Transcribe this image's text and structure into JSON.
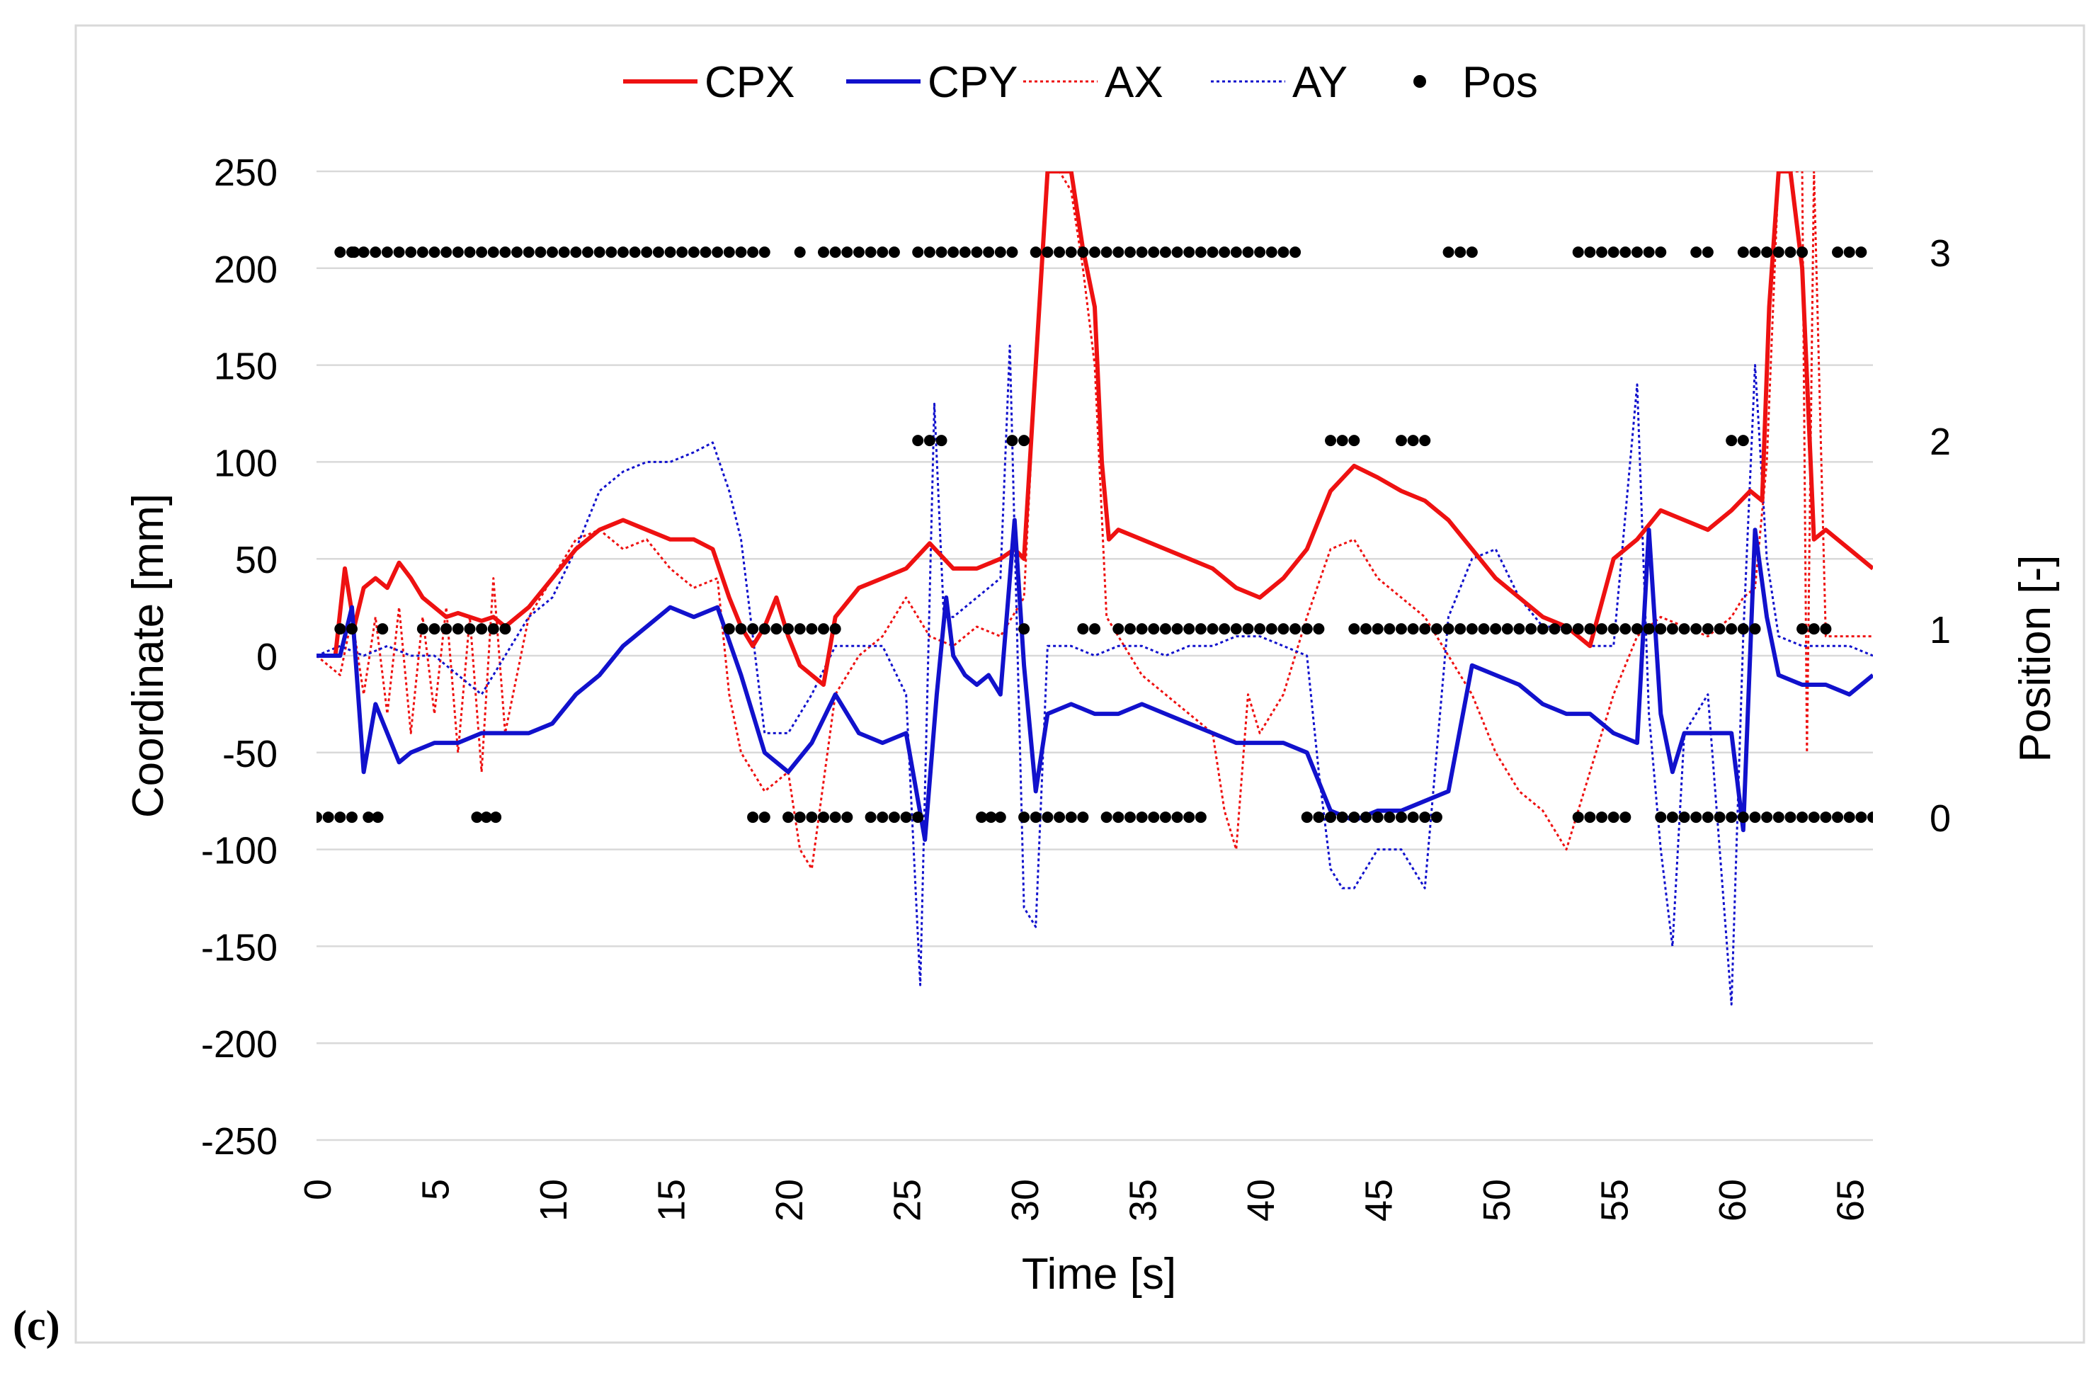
{
  "panel_label": "(c)",
  "chart_data": {
    "type": "line",
    "xlabel": "Time [s]",
    "ylabel": "Coordinate [mm]",
    "y2label": "Position [-]",
    "xlim": [
      0,
      66
    ],
    "ylim": [
      -250,
      250
    ],
    "y2lim": [
      -1.714,
      3.429
    ],
    "x_ticks": [
      "0",
      "5",
      "10",
      "15",
      "20",
      "25",
      "30",
      "35",
      "40",
      "45",
      "50",
      "55",
      "60",
      "65"
    ],
    "y_ticks": [
      "250",
      "200",
      "150",
      "100",
      "50",
      "0",
      "-50",
      "-100",
      "-150",
      "-200",
      "-250"
    ],
    "y2_ticks": [
      "3",
      "2",
      "1",
      "0"
    ],
    "legend": [
      {
        "name": "CPX",
        "color": "#ee1111",
        "style": "solid"
      },
      {
        "name": "CPY",
        "color": "#1111cc",
        "style": "solid"
      },
      {
        "name": "AX",
        "color": "#ee1111",
        "style": "dotted"
      },
      {
        "name": "AY",
        "color": "#1111cc",
        "style": "dotted"
      },
      {
        "name": "Pos",
        "color": "#000000",
        "style": "marker"
      }
    ],
    "series": [
      {
        "name": "CPX",
        "axis": "left",
        "x": [
          0,
          0.8,
          1.2,
          1.6,
          2.0,
          2.5,
          3.0,
          3.5,
          4.0,
          4.5,
          5.0,
          5.5,
          6.0,
          6.5,
          7.0,
          7.5,
          8.0,
          9.0,
          10.0,
          11.0,
          12.0,
          13.0,
          14.0,
          15.0,
          16.0,
          16.8,
          17.5,
          18.0,
          18.5,
          19.0,
          19.5,
          20.0,
          20.5,
          21.0,
          21.5,
          22.0,
          23.0,
          24.0,
          25.0,
          26.0,
          27.0,
          28.0,
          29.0,
          29.6,
          30.0,
          30.5,
          31.0,
          31.5,
          32.0,
          32.5,
          33.0,
          33.3,
          33.6,
          34.0,
          35.0,
          36.0,
          37.0,
          38.0,
          39.0,
          40.0,
          41.0,
          42.0,
          43.0,
          44.0,
          45.0,
          46.0,
          47.0,
          48.0,
          49.0,
          50.0,
          51.0,
          52.0,
          53.0,
          54.0,
          55.0,
          56.0,
          57.0,
          58.0,
          59.0,
          60.0,
          60.8,
          61.3,
          61.6,
          62.0,
          62.5,
          63.0,
          63.5,
          64.0,
          65.0,
          66.0
        ],
        "values": [
          0,
          0,
          45,
          15,
          35,
          40,
          35,
          48,
          40,
          30,
          25,
          20,
          22,
          20,
          18,
          20,
          15,
          25,
          40,
          55,
          65,
          70,
          65,
          60,
          60,
          55,
          30,
          15,
          5,
          15,
          30,
          10,
          -5,
          -10,
          -15,
          20,
          35,
          40,
          45,
          58,
          45,
          45,
          50,
          55,
          50,
          150,
          250,
          250,
          250,
          210,
          180,
          100,
          60,
          65,
          60,
          55,
          50,
          45,
          35,
          30,
          40,
          55,
          85,
          98,
          92,
          85,
          80,
          70,
          55,
          40,
          30,
          20,
          15,
          5,
          50,
          60,
          75,
          70,
          65,
          75,
          85,
          80,
          180,
          250,
          250,
          200,
          60,
          65,
          55,
          45
        ]
      },
      {
        "name": "CPY",
        "axis": "left",
        "x": [
          0,
          1.0,
          1.5,
          2.0,
          2.5,
          3.0,
          3.5,
          4.0,
          5.0,
          6.0,
          7.0,
          8.0,
          9.0,
          10.0,
          11.0,
          12.0,
          13.0,
          14.0,
          15.0,
          16.0,
          17.0,
          18.0,
          19.0,
          20.0,
          21.0,
          22.0,
          23.0,
          24.0,
          25.0,
          25.8,
          26.3,
          26.7,
          27.0,
          27.5,
          28.0,
          28.5,
          29.0,
          29.6,
          30.0,
          30.5,
          31.0,
          32.0,
          33.0,
          34.0,
          35.0,
          36.0,
          37.0,
          38.0,
          39.0,
          40.0,
          41.0,
          42.0,
          43.0,
          44.0,
          45.0,
          46.0,
          47.0,
          48.0,
          49.0,
          50.0,
          51.0,
          52.0,
          53.0,
          54.0,
          55.0,
          56.0,
          56.5,
          57.0,
          57.5,
          58.0,
          59.0,
          60.0,
          60.5,
          61.0,
          61.5,
          62.0,
          63.0,
          64.0,
          65.0,
          66.0
        ],
        "values": [
          0,
          0,
          25,
          -60,
          -25,
          -40,
          -55,
          -50,
          -45,
          -45,
          -40,
          -40,
          -40,
          -35,
          -20,
          -10,
          5,
          15,
          25,
          20,
          25,
          -10,
          -50,
          -60,
          -45,
          -20,
          -40,
          -45,
          -40,
          -95,
          -20,
          30,
          0,
          -10,
          -15,
          -10,
          -20,
          70,
          -5,
          -70,
          -30,
          -25,
          -30,
          -30,
          -25,
          -30,
          -35,
          -40,
          -45,
          -45,
          -45,
          -50,
          -80,
          -85,
          -80,
          -80,
          -75,
          -70,
          -5,
          -10,
          -15,
          -25,
          -30,
          -30,
          -40,
          -45,
          65,
          -30,
          -60,
          -40,
          -40,
          -40,
          -90,
          65,
          20,
          -10,
          -15,
          -15,
          -20,
          -10
        ]
      },
      {
        "name": "AX",
        "axis": "left",
        "x": [
          0,
          1.0,
          1.5,
          2.0,
          2.5,
          3.0,
          3.5,
          4.0,
          4.5,
          5.0,
          5.5,
          6.0,
          6.5,
          7.0,
          7.5,
          8.0,
          9.0,
          10.0,
          11.0,
          12.0,
          13.0,
          14.0,
          15.0,
          16.0,
          17.0,
          17.5,
          18.0,
          19.0,
          20.0,
          20.5,
          21.0,
          22.0,
          23.0,
          24.0,
          25.0,
          26.0,
          27.0,
          28.0,
          29.0,
          30.0,
          30.5,
          31.0,
          31.5,
          32.0,
          32.5,
          33.0,
          33.5,
          34.0,
          35.0,
          36.0,
          37.0,
          38.0,
          38.5,
          39.0,
          39.5,
          40.0,
          41.0,
          42.0,
          43.0,
          44.0,
          45.0,
          46.0,
          47.0,
          48.0,
          49.0,
          50.0,
          51.0,
          52.0,
          53.0,
          54.0,
          55.0,
          56.0,
          57.0,
          58.0,
          59.0,
          60.0,
          60.5,
          61.0,
          61.5,
          62.0,
          62.5,
          63.0,
          63.2,
          63.5,
          64.0,
          65.0,
          66.0
        ],
        "values": [
          0,
          -10,
          20,
          -20,
          20,
          -30,
          25,
          -40,
          20,
          -30,
          25,
          -50,
          20,
          -60,
          40,
          -40,
          20,
          40,
          60,
          65,
          55,
          60,
          45,
          35,
          40,
          -20,
          -50,
          -70,
          -60,
          -100,
          -110,
          -20,
          0,
          10,
          30,
          10,
          5,
          15,
          10,
          30,
          150,
          250,
          250,
          240,
          200,
          150,
          20,
          10,
          -10,
          -20,
          -30,
          -40,
          -80,
          -100,
          -20,
          -40,
          -20,
          20,
          55,
          60,
          40,
          30,
          20,
          0,
          -20,
          -50,
          -70,
          -80,
          -100,
          -60,
          -20,
          10,
          20,
          15,
          10,
          20,
          30,
          35,
          100,
          250,
          250,
          250,
          -50,
          250,
          10,
          10,
          10
        ]
      },
      {
        "name": "AY",
        "axis": "left",
        "x": [
          0,
          1.0,
          2.0,
          3.0,
          4.0,
          5.0,
          6.0,
          7.0,
          8.0,
          9.0,
          10.0,
          11.0,
          12.0,
          13.0,
          14.0,
          15.0,
          16.0,
          16.8,
          17.5,
          18.0,
          19.0,
          20.0,
          21.0,
          22.0,
          23.0,
          24.0,
          25.0,
          25.6,
          26.2,
          26.6,
          27.0,
          28.0,
          29.0,
          29.4,
          30.0,
          30.5,
          31.0,
          32.0,
          33.0,
          34.0,
          35.0,
          36.0,
          37.0,
          38.0,
          39.0,
          40.0,
          41.0,
          42.0,
          42.5,
          43.0,
          43.5,
          44.0,
          45.0,
          46.0,
          47.0,
          48.0,
          49.0,
          50.0,
          51.0,
          52.0,
          53.0,
          54.0,
          55.0,
          56.0,
          56.5,
          57.0,
          57.5,
          58.0,
          59.0,
          60.0,
          60.5,
          61.0,
          61.5,
          62.0,
          63.0,
          64.0,
          65.0,
          66.0
        ],
        "values": [
          0,
          5,
          0,
          5,
          0,
          0,
          -10,
          -20,
          0,
          20,
          30,
          55,
          85,
          95,
          100,
          100,
          105,
          110,
          85,
          60,
          -40,
          -40,
          -20,
          5,
          5,
          5,
          -20,
          -170,
          130,
          20,
          20,
          30,
          40,
          160,
          -130,
          -140,
          5,
          5,
          0,
          5,
          5,
          0,
          5,
          5,
          10,
          10,
          5,
          0,
          -60,
          -110,
          -120,
          -120,
          -100,
          -100,
          -120,
          20,
          50,
          55,
          30,
          15,
          15,
          5,
          5,
          140,
          -30,
          -100,
          -150,
          -40,
          -20,
          -180,
          10,
          150,
          50,
          10,
          5,
          5,
          5,
          0
        ]
      },
      {
        "name": "Pos",
        "axis": "right",
        "marker": "dot",
        "x": [
          1.0,
          1.5,
          1.6,
          2.0,
          2.5,
          3.0,
          3.5,
          4.0,
          4.5,
          5.0,
          5.5,
          6.0,
          6.5,
          7.0,
          7.5,
          8.0,
          8.5,
          9.0,
          9.5,
          10.0,
          10.5,
          11.0,
          11.5,
          12.0,
          12.5,
          13.0,
          13.5,
          14.0,
          14.5,
          15.0,
          15.5,
          16.0,
          16.5,
          17.0,
          17.5,
          18.0,
          18.5,
          19.0,
          20.5,
          21.5,
          22.0,
          22.5,
          23.0,
          23.5,
          24.0,
          24.5,
          25.5,
          26.0,
          26.5,
          27.0,
          27.5,
          28.0,
          28.5,
          29.0,
          29.5,
          30.5,
          31.0,
          31.5,
          32.0,
          32.5,
          33.0,
          33.5,
          34.0,
          34.5,
          35.0,
          35.5,
          36.0,
          36.5,
          37.0,
          37.5,
          38.0,
          38.5,
          39.0,
          39.5,
          40.0,
          40.5,
          41.0,
          41.5,
          48.0,
          48.5,
          49.0,
          53.5,
          54.0,
          54.5,
          55.0,
          55.5,
          56.0,
          56.5,
          57.0,
          58.5,
          59.0,
          60.5,
          61.0,
          61.5,
          62.0,
          62.5,
          63.0,
          64.5,
          65.0,
          65.5
        ],
        "values": [
          3,
          3,
          3,
          3,
          3,
          3,
          3,
          3,
          3,
          3,
          3,
          3,
          3,
          3,
          3,
          3,
          3,
          3,
          3,
          3,
          3,
          3,
          3,
          3,
          3,
          3,
          3,
          3,
          3,
          3,
          3,
          3,
          3,
          3,
          3,
          3,
          3,
          3,
          3,
          3,
          3,
          3,
          3,
          3,
          3,
          3,
          3,
          3,
          3,
          3,
          3,
          3,
          3,
          3,
          3,
          3,
          3,
          3,
          3,
          3,
          3,
          3,
          3,
          3,
          3,
          3,
          3,
          3,
          3,
          3,
          3,
          3,
          3,
          3,
          3,
          3,
          3,
          3,
          3,
          3,
          3,
          3,
          3,
          3,
          3,
          3,
          3,
          3,
          3,
          3,
          3,
          3,
          3,
          3,
          3,
          3,
          3,
          3,
          3,
          3
        ]
      }
    ],
    "pos_level2_x": [
      25.5,
      26.0,
      26.5,
      29.5,
      30.0,
      43.0,
      43.5,
      44.0,
      46.0,
      46.5,
      47.0,
      60.0,
      60.5
    ],
    "pos_level1_x": [
      1.0,
      1.5,
      2.8,
      4.5,
      5.0,
      5.5,
      6.0,
      6.5,
      7.0,
      7.5,
      8.0,
      17.5,
      18.0,
      18.5,
      19.0,
      19.5,
      20.0,
      20.5,
      21.0,
      21.5,
      22.0,
      30.0,
      32.5,
      33.0,
      34.0,
      34.5,
      35.0,
      35.5,
      36.0,
      36.5,
      37.0,
      37.5,
      38.0,
      38.5,
      39.0,
      39.5,
      40.0,
      40.5,
      41.0,
      41.5,
      42.0,
      42.5,
      44.0,
      44.5,
      45.0,
      45.5,
      46.0,
      46.5,
      47.0,
      47.5,
      48.0,
      48.5,
      49.0,
      49.5,
      50.0,
      50.5,
      51.0,
      51.5,
      52.0,
      52.5,
      53.0,
      53.5,
      54.0,
      54.5,
      55.0,
      55.5,
      56.0,
      56.5,
      57.0,
      57.5,
      58.0,
      58.5,
      59.0,
      59.5,
      60.0,
      60.5,
      61.0,
      63.0,
      63.5,
      64.0
    ],
    "pos_level0_x": [
      0,
      0.5,
      1.0,
      1.5,
      2.2,
      2.6,
      6.8,
      7.2,
      7.6,
      18.5,
      19.0,
      20.0,
      20.5,
      21.0,
      21.5,
      22.0,
      22.5,
      23.5,
      24.0,
      24.5,
      25.0,
      25.5,
      28.2,
      28.6,
      29.0,
      30.0,
      30.5,
      31.0,
      31.5,
      32.0,
      32.5,
      33.5,
      34.0,
      34.5,
      35.0,
      35.5,
      36.0,
      36.5,
      37.0,
      37.5,
      42.0,
      42.5,
      43.0,
      43.5,
      44.0,
      44.5,
      45.0,
      45.5,
      46.0,
      46.5,
      47.0,
      47.5,
      53.5,
      54.0,
      54.5,
      55.0,
      55.5,
      57.0,
      57.5,
      58.0,
      58.5,
      59.0,
      59.5,
      60.0,
      60.5,
      61.0,
      61.5,
      62.0,
      62.5,
      63.0,
      63.5,
      64.0,
      64.5,
      65.0,
      65.5,
      66.0
    ]
  }
}
